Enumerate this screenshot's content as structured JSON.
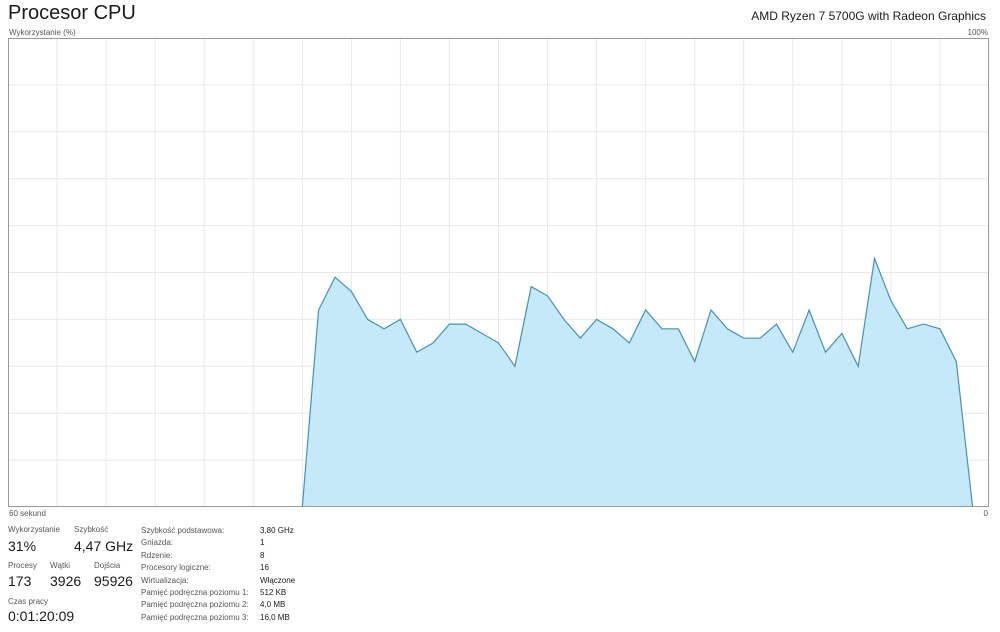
{
  "header": {
    "title": "Procesor CPU",
    "cpu_name": "AMD Ryzen 7 5700G with Radeon Graphics"
  },
  "graph": {
    "y_label": "Wykorzystanie (%)",
    "y_max_label": "100%",
    "x_left_label": "60 sekund",
    "x_right_label": "0",
    "colors": {
      "fill": "#c5e9f8",
      "line": "#4a90b0",
      "grid": "#e8e8e8",
      "border": "#999999"
    }
  },
  "chart_data": {
    "type": "area",
    "xlabel": "60 sekund",
    "ylabel": "Wykorzystanie (%)",
    "xlim": [
      60,
      0
    ],
    "ylim": [
      0,
      100
    ],
    "grid": true,
    "x": [
      60,
      59,
      58,
      57,
      56,
      55,
      54,
      53,
      52,
      51,
      50,
      49,
      48,
      47,
      46,
      45,
      44,
      43,
      42,
      41,
      40,
      39,
      38,
      37,
      36,
      35,
      34,
      33,
      32,
      31,
      30,
      29,
      28,
      27,
      26,
      25,
      24,
      23,
      22,
      21,
      20,
      19,
      18,
      17,
      16,
      15,
      14,
      13,
      12,
      11,
      10,
      9,
      8,
      7,
      6,
      5,
      4,
      3,
      2,
      1,
      0
    ],
    "values": [
      0,
      0,
      0,
      0,
      0,
      0,
      0,
      0,
      0,
      0,
      0,
      0,
      0,
      0,
      0,
      0,
      0,
      0,
      0,
      42,
      49,
      46,
      40,
      38,
      40,
      33,
      35,
      39,
      39,
      37,
      35,
      30,
      47,
      45,
      40,
      36,
      40,
      38,
      35,
      42,
      38,
      38,
      31,
      42,
      38,
      36,
      36,
      39,
      33,
      42,
      33,
      37,
      30,
      53,
      44,
      38,
      39,
      38,
      31,
      0,
      0
    ]
  },
  "stats": {
    "usage_label": "Wykorzystanie",
    "usage_value": "31%",
    "speed_label": "Szybkość",
    "speed_value": "4,47 GHz",
    "processes_label": "Procesy",
    "processes_value": "173",
    "threads_label": "Wątki",
    "threads_value": "3926",
    "handles_label": "Dojścia",
    "handles_value": "95926",
    "uptime_label": "Czas pracy",
    "uptime_value": "0:01:20:09"
  },
  "details": [
    {
      "label": "Szybkość podstawowa:",
      "value": "3,80 GHz"
    },
    {
      "label": "Gniazda:",
      "value": "1"
    },
    {
      "label": "Rdzenie:",
      "value": "8"
    },
    {
      "label": "Procesory logiczne:",
      "value": "16"
    },
    {
      "label": "Wirtualizacja:",
      "value": "Włączone"
    },
    {
      "label": "Pamięć podręczna poziomu 1:",
      "value": "512 KB"
    },
    {
      "label": "Pamięć podręczna poziomu 2:",
      "value": "4,0 MB"
    },
    {
      "label": "Pamięć podręczna poziomu 3:",
      "value": "16,0 MB"
    }
  ]
}
